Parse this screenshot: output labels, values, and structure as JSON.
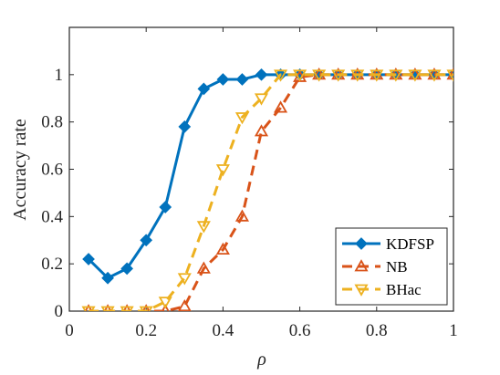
{
  "chart_data": {
    "type": "line",
    "xlabel": "ρ",
    "ylabel": "Accuracy rate",
    "xlim": [
      0,
      1
    ],
    "ylim": [
      0,
      1.2
    ],
    "xticks": [
      0,
      0.2,
      0.4,
      0.6,
      0.8,
      1
    ],
    "xtick_labels": [
      "0",
      "0.2",
      "0.4",
      "0.6",
      "0.8",
      "1"
    ],
    "yticks": [
      0,
      0.2,
      0.4,
      0.6,
      0.8,
      1
    ],
    "ytick_labels": [
      "0",
      "0.2",
      "0.4",
      "0.6",
      "0.8",
      "1"
    ],
    "grid": false,
    "legend_position": "bottom-right",
    "x": [
      0.05,
      0.1,
      0.15,
      0.2,
      0.25,
      0.3,
      0.35,
      0.4,
      0.45,
      0.5,
      0.55,
      0.6,
      0.65,
      0.7,
      0.75,
      0.8,
      0.85,
      0.9,
      0.95,
      1.0
    ],
    "series": [
      {
        "name": "KDFSP",
        "color": "#0072BD",
        "line_style": "solid",
        "marker": "diamond",
        "values": [
          0.22,
          0.14,
          0.18,
          0.3,
          0.44,
          0.78,
          0.94,
          0.98,
          0.98,
          1.0,
          1.0,
          1.0,
          1.0,
          1.0,
          1.0,
          1.0,
          1.0,
          1.0,
          1.0,
          1.0
        ]
      },
      {
        "name": "NB",
        "color": "#D95319",
        "line_style": "dashed",
        "marker": "triangle-up",
        "values": [
          0,
          0,
          0,
          0,
          0,
          0.02,
          0.18,
          0.26,
          0.4,
          0.76,
          0.86,
          0.99,
          1.0,
          1.0,
          1.0,
          1.0,
          1.0,
          1.0,
          1.0,
          1.0
        ]
      },
      {
        "name": "BHac",
        "color": "#EDB120",
        "line_style": "dashed",
        "marker": "triangle-down",
        "values": [
          0,
          0,
          0,
          0,
          0.04,
          0.14,
          0.36,
          0.6,
          0.82,
          0.9,
          1.0,
          1.0,
          1.0,
          1.0,
          1.0,
          1.0,
          1.0,
          1.0,
          1.0,
          1.0
        ]
      }
    ]
  }
}
